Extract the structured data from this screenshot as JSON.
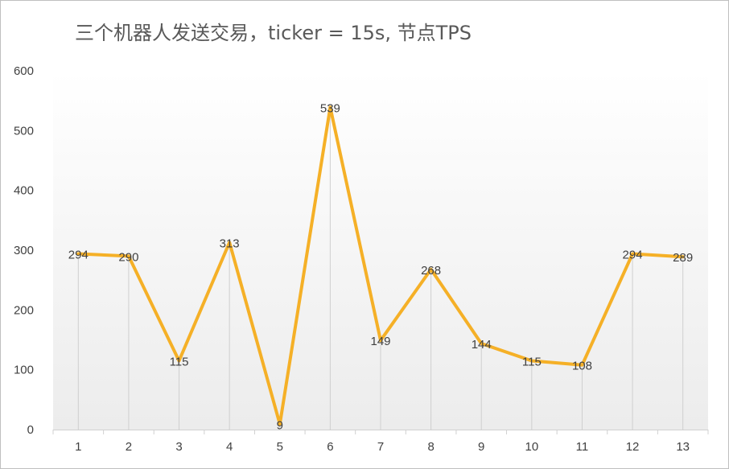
{
  "chart_data": {
    "type": "line",
    "title": "三个机器人发送交易，ticker = 15s, 节点TPS",
    "xlabel": "",
    "ylabel": "",
    "categories": [
      "1",
      "2",
      "3",
      "4",
      "5",
      "6",
      "7",
      "8",
      "9",
      "10",
      "11",
      "12",
      "13"
    ],
    "values": [
      294,
      290,
      115,
      313,
      9,
      539,
      149,
      268,
      144,
      115,
      108,
      294,
      289
    ],
    "ylim": [
      0,
      600
    ],
    "yticks": [
      0,
      100,
      200,
      300,
      400,
      500,
      600
    ],
    "line_color": "#f5b027",
    "data_labels": true,
    "drop_lines": true,
    "grid": false,
    "legend": "none"
  }
}
